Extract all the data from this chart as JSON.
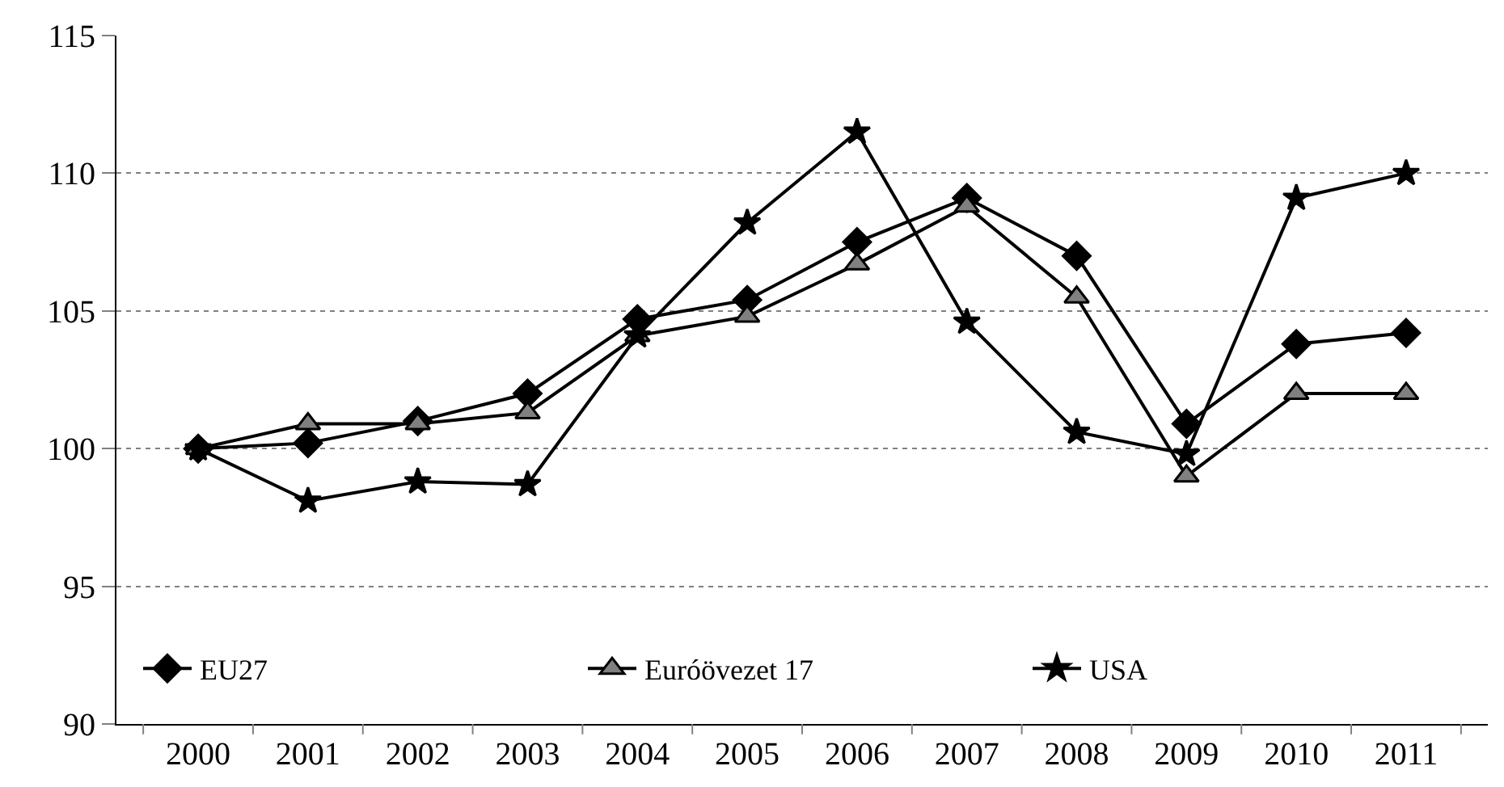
{
  "chart_data": {
    "type": "line",
    "categories": [
      "2000",
      "2001",
      "2002",
      "2003",
      "2004",
      "2005",
      "2006",
      "2007",
      "2008",
      "2009",
      "2010",
      "2011"
    ],
    "series": [
      {
        "name": "EU27",
        "color": "#000000",
        "marker": "diamond",
        "values": [
          100.0,
          100.2,
          101.0,
          102.0,
          104.7,
          105.4,
          107.5,
          109.1,
          107.0,
          100.9,
          103.8,
          104.2
        ]
      },
      {
        "name": "Euróövezet 17",
        "color": "#808080",
        "marker": "triangle",
        "values": [
          100.0,
          100.9,
          100.9,
          101.3,
          104.1,
          104.8,
          106.7,
          108.8,
          105.5,
          99.0,
          102.0,
          102.0
        ]
      },
      {
        "name": "USA",
        "color": "#000000",
        "marker": "star",
        "values": [
          100.0,
          98.1,
          98.8,
          98.7,
          104.1,
          108.2,
          111.5,
          104.6,
          100.6,
          99.8,
          109.1,
          110.0
        ]
      }
    ],
    "ylim": [
      90,
      115
    ],
    "yticks": [
      90,
      95,
      100,
      105,
      110,
      115
    ],
    "grid": "y",
    "legend": "bottom",
    "line_style": "solid"
  }
}
